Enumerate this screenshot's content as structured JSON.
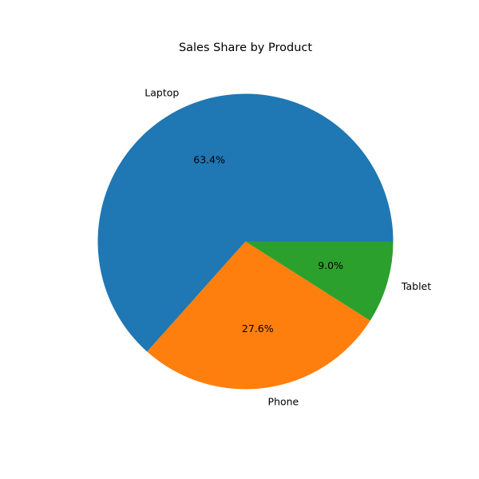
{
  "chart_data": {
    "type": "pie",
    "title": "Sales Share by Product",
    "categories": [
      "Laptop",
      "Phone",
      "Tablet"
    ],
    "values": [
      63.4,
      27.6,
      9.0
    ],
    "percent_labels": [
      "63.4%",
      "27.6%",
      "9.0%"
    ],
    "colors": [
      "#1f77b4",
      "#ff7f0e",
      "#2ca02c"
    ],
    "start_angle": 0,
    "direction": "counterclockwise",
    "legend": "none"
  }
}
